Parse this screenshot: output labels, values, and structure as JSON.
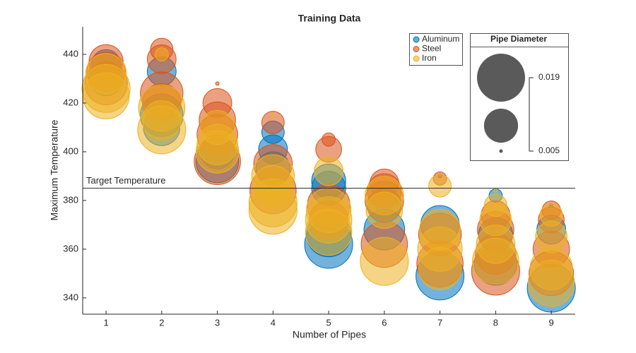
{
  "chart_data": {
    "type": "bubble",
    "title": "Training Data",
    "x_label": "Number of Pipes",
    "y_label": "Maximum Temperature",
    "xlim": [
      0.58,
      9.43
    ],
    "xticks": [
      1,
      2,
      3,
      4,
      5,
      6,
      7,
      8,
      9
    ],
    "ylim": [
      333.3,
      451.3
    ],
    "yticks": [
      340,
      360,
      380,
      400,
      420,
      440
    ],
    "reference_line": {
      "value": 385,
      "label": "Target Temperature"
    },
    "bubble_legend": {
      "title": "Pipe Diameter",
      "limits": [
        0.005,
        0.019
      ]
    },
    "series": [
      {
        "name": "Aluminum",
        "color": "#0072BD",
        "x": [
          1,
          1,
          2,
          2,
          2,
          3,
          3,
          4,
          4,
          4,
          5,
          5,
          5,
          5,
          6,
          6,
          7,
          7,
          7,
          8,
          8,
          8,
          9,
          9,
          9
        ],
        "values": [
          430,
          436,
          433,
          415,
          410,
          400,
          396,
          408,
          401,
          393,
          388,
          385,
          366,
          362,
          368,
          378,
          390,
          370,
          349,
          382,
          366,
          354,
          378,
          368,
          344
        ],
        "sizes": [
          0.012,
          0.01,
          0.01,
          0.016,
          0.013,
          0.012,
          0.016,
          0.008,
          0.01,
          0.012,
          0.012,
          0.012,
          0.017,
          0.019,
          0.015,
          0.012,
          0.005,
          0.014,
          0.019,
          0.006,
          0.012,
          0.016,
          0.005,
          0.01,
          0.019
        ]
      },
      {
        "name": "Steel",
        "color": "#D95319",
        "x": [
          1,
          1,
          1,
          2,
          2,
          2,
          2,
          3,
          3,
          3,
          3,
          3,
          4,
          4,
          4,
          5,
          5,
          5,
          5,
          6,
          6,
          6,
          6,
          7,
          7,
          7,
          8,
          8,
          8,
          8,
          9,
          9,
          9,
          9
        ],
        "values": [
          437,
          433,
          428,
          442,
          438,
          424,
          420,
          428,
          420,
          413,
          407,
          396,
          412,
          395,
          384,
          405,
          401,
          378,
          372,
          387,
          384,
          380,
          362,
          389,
          366,
          354,
          374,
          368,
          351,
          358,
          376,
          372,
          360,
          350
        ],
        "sizes": [
          0.012,
          0.014,
          0.016,
          0.008,
          0.01,
          0.016,
          0.014,
          0.005,
          0.01,
          0.013,
          0.015,
          0.018,
          0.008,
          0.014,
          0.018,
          0.006,
          0.009,
          0.016,
          0.014,
          0.01,
          0.012,
          0.014,
          0.018,
          0.006,
          0.016,
          0.018,
          0.01,
          0.013,
          0.019,
          0.015,
          0.007,
          0.009,
          0.013,
          0.017
        ]
      },
      {
        "name": "Iron",
        "color": "#EDB120",
        "x": [
          1,
          1,
          1,
          2,
          2,
          2,
          2,
          3,
          3,
          3,
          4,
          4,
          4,
          4,
          4,
          5,
          5,
          5,
          5,
          6,
          6,
          6,
          7,
          7,
          7,
          7,
          8,
          8,
          8,
          8,
          8,
          9,
          9,
          9,
          9
        ],
        "values": [
          426,
          423,
          432,
          440,
          418,
          409,
          413,
          410,
          403,
          400,
          415,
          390,
          379,
          376,
          386,
          392,
          372,
          376,
          367,
          376,
          382,
          355,
          386,
          360,
          368,
          352,
          384,
          378,
          362,
          355,
          372,
          374,
          365,
          352,
          346
        ],
        "sizes": [
          0.019,
          0.018,
          0.015,
          0.006,
          0.018,
          0.019,
          0.014,
          0.012,
          0.015,
          0.016,
          0.005,
          0.016,
          0.019,
          0.019,
          0.015,
          0.01,
          0.018,
          0.017,
          0.018,
          0.013,
          0.014,
          0.019,
          0.008,
          0.017,
          0.015,
          0.016,
          0.005,
          0.008,
          0.014,
          0.018,
          0.011,
          0.008,
          0.011,
          0.016,
          0.018
        ]
      }
    ]
  }
}
